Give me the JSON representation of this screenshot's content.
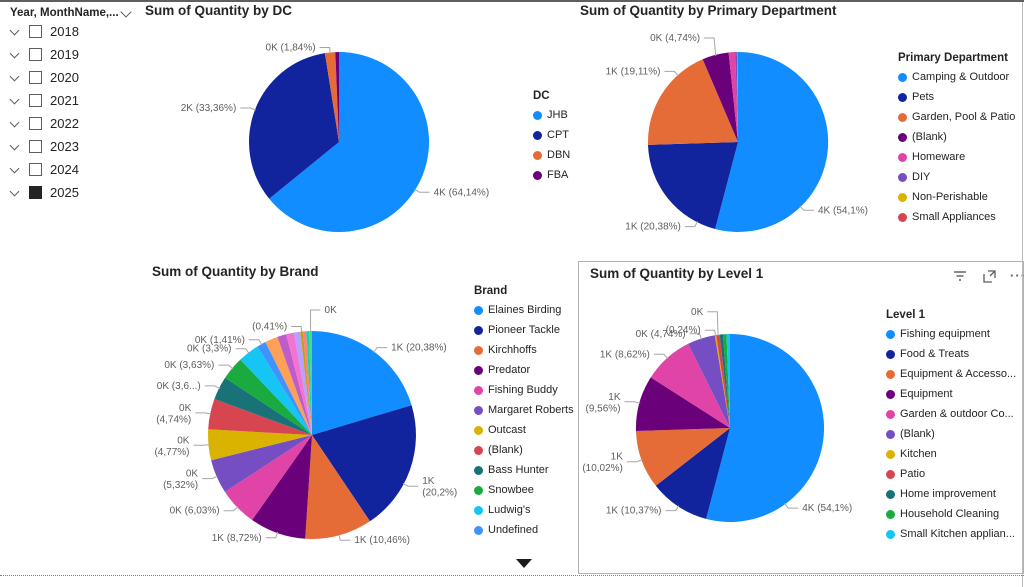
{
  "slicer": {
    "header": "Year, MonthName,...",
    "items": [
      {
        "label": "2018",
        "checked": false
      },
      {
        "label": "2019",
        "checked": false
      },
      {
        "label": "2020",
        "checked": false
      },
      {
        "label": "2021",
        "checked": false
      },
      {
        "label": "2022",
        "checked": false
      },
      {
        "label": "2023",
        "checked": false
      },
      {
        "label": "2024",
        "checked": false
      },
      {
        "label": "2025",
        "checked": true
      }
    ]
  },
  "icons": {
    "more_options_glyph": "···"
  },
  "chart_data": [
    {
      "type": "pie",
      "title": "Sum of Quantity by DC",
      "legend_title": "DC",
      "legend_position": "right",
      "slices": [
        {
          "name": "JHB",
          "color": "#118DFF",
          "value": 64.14,
          "label": "4K (64,14%)",
          "in_legend": true
        },
        {
          "name": "CPT",
          "color": "#12239E",
          "value": 33.36,
          "label": "2K (33,36%)",
          "in_legend": true
        },
        {
          "name": "DBN",
          "color": "#E66C37",
          "value": 1.84,
          "label": "0K (1,84%)",
          "in_legend": true
        },
        {
          "name": "FBA",
          "color": "#6B007B",
          "value": 0.66,
          "label": null,
          "in_legend": true
        }
      ]
    },
    {
      "type": "pie",
      "title": "Sum of Quantity by Primary Department",
      "legend_title": "Primary Department",
      "legend_position": "right",
      "slices": [
        {
          "name": "Camping & Outdoor",
          "color": "#118DFF",
          "value": 54.1,
          "label": "4K (54,1%)",
          "in_legend": true
        },
        {
          "name": "Pets",
          "color": "#12239E",
          "value": 20.38,
          "label": "1K (20,38%)",
          "in_legend": true
        },
        {
          "name": "Garden, Pool & Patio",
          "color": "#E66C37",
          "value": 19.11,
          "label": "1K (19,11%)",
          "in_legend": true
        },
        {
          "name": "(Blank)",
          "color": "#6B007B",
          "value": 4.74,
          "label": "0K (4,74%)",
          "in_legend": true
        },
        {
          "name": "Homeware",
          "color": "#E044A7",
          "value": 1.2,
          "label": null,
          "in_legend": true
        },
        {
          "name": "DIY",
          "color": "#744EC2",
          "value": 0.27,
          "label": null,
          "in_legend": true
        },
        {
          "name": "Non-Perishable",
          "color": "#D9B300",
          "value": 0.12,
          "label": null,
          "in_legend": true
        },
        {
          "name": "Small Appliances",
          "color": "#D64550",
          "value": 0.08,
          "label": null,
          "in_legend": true
        }
      ]
    },
    {
      "type": "pie",
      "title": "Sum of Quantity by Brand",
      "legend_title": "Brand",
      "legend_position": "right",
      "slices": [
        {
          "name": "Elaines Birding",
          "color": "#118DFF",
          "value": 20.38,
          "label": "1K (20,38%)",
          "in_legend": true
        },
        {
          "name": "Pioneer Tackle",
          "color": "#12239E",
          "value": 20.2,
          "label": "1K\n(20,2%)",
          "in_legend": true
        },
        {
          "name": "Kirchhoffs",
          "color": "#E66C37",
          "value": 10.46,
          "label": "1K (10,46%)",
          "in_legend": true
        },
        {
          "name": "Predator",
          "color": "#6B007B",
          "value": 8.72,
          "label": "1K (8,72%)",
          "in_legend": true
        },
        {
          "name": "Fishing Buddy",
          "color": "#E044A7",
          "value": 6.03,
          "label": "0K (6,03%)",
          "in_legend": true
        },
        {
          "name": "Margaret Roberts",
          "color": "#744EC2",
          "value": 5.32,
          "label": "0K\n(5,32%)",
          "in_legend": true
        },
        {
          "name": "Outcast",
          "color": "#D9B300",
          "value": 4.77,
          "label": "0K\n(4,77%)",
          "in_legend": true
        },
        {
          "name": "(Blank)",
          "color": "#D64550",
          "value": 4.74,
          "label": "0K\n(4,74%)",
          "in_legend": true
        },
        {
          "name": "Bass Hunter",
          "color": "#197278",
          "value": 3.65,
          "label": "0K (3,6...)",
          "in_legend": true
        },
        {
          "name": "Snowbee",
          "color": "#1AAB40",
          "value": 3.63,
          "label": "0K (3,63%)",
          "in_legend": true
        },
        {
          "name": "Ludwig's",
          "color": "#15C6F4",
          "value": 3.3,
          "label": "0K (3,3%)",
          "in_legend": true
        },
        {
          "name": "Undefined",
          "color": "#4092FF",
          "value": 1.41,
          "label": "0K (1,41%)",
          "in_legend": true
        },
        {
          "name": "",
          "color": "#FFA058",
          "value": 2.0,
          "label": null,
          "in_legend": false
        },
        {
          "name": "",
          "color": "#BE5DC9",
          "value": 1.4,
          "label": null,
          "in_legend": false
        },
        {
          "name": "",
          "color": "#F472D0",
          "value": 1.2,
          "label": null,
          "in_legend": false
        },
        {
          "name": "",
          "color": "#B5A1FF",
          "value": 1.0,
          "label": null,
          "in_legend": false
        },
        {
          "name": "",
          "color": "#C4A200",
          "value": 0.41,
          "label": "(0,41%)",
          "in_legend": false
        },
        {
          "name": "",
          "color": "#FF8080",
          "value": 0.5,
          "label": null,
          "in_legend": false
        },
        {
          "name": "",
          "color": "#00DBBC",
          "value": 0.45,
          "label": null,
          "in_legend": false
        },
        {
          "name": "",
          "color": "#5BD667",
          "value": 0.43,
          "label": "0K",
          "in_legend": false
        }
      ]
    },
    {
      "type": "pie",
      "title": "Sum of Quantity by Level 1",
      "legend_title": "Level 1",
      "legend_position": "right",
      "slices": [
        {
          "name": "Fishing equipment",
          "color": "#118DFF",
          "value": 54.1,
          "label": "4K (54,1%)",
          "in_legend": true
        },
        {
          "name": "Food & Treats",
          "color": "#12239E",
          "value": 10.37,
          "label": "1K (10,37%)",
          "in_legend": true
        },
        {
          "name": "Equipment & Accesso...",
          "color": "#E66C37",
          "value": 10.02,
          "label": "1K\n(10,02%)",
          "in_legend": true
        },
        {
          "name": "Equipment",
          "color": "#6B007B",
          "value": 9.56,
          "label": "1K\n(9,56%)",
          "in_legend": true
        },
        {
          "name": "Garden & outdoor Co...",
          "color": "#E044A7",
          "value": 8.62,
          "label": "1K (8,62%)",
          "in_legend": true
        },
        {
          "name": "(Blank)",
          "color": "#744EC2",
          "value": 4.74,
          "label": "0K (4,74%)",
          "in_legend": true
        },
        {
          "name": "Kitchen",
          "color": "#D9B300",
          "value": 0.24,
          "label": "(0,24%)",
          "in_legend": true
        },
        {
          "name": "Patio",
          "color": "#D64550",
          "value": 0.6,
          "label": "0K",
          "in_legend": true
        },
        {
          "name": "Home improvement",
          "color": "#197278",
          "value": 0.55,
          "label": null,
          "in_legend": true
        },
        {
          "name": "Household Cleaning",
          "color": "#1AAB40",
          "value": 0.6,
          "label": null,
          "in_legend": true
        },
        {
          "name": "Small Kitchen applian...",
          "color": "#15C6F4",
          "value": 0.6,
          "label": null,
          "in_legend": true
        }
      ]
    }
  ]
}
